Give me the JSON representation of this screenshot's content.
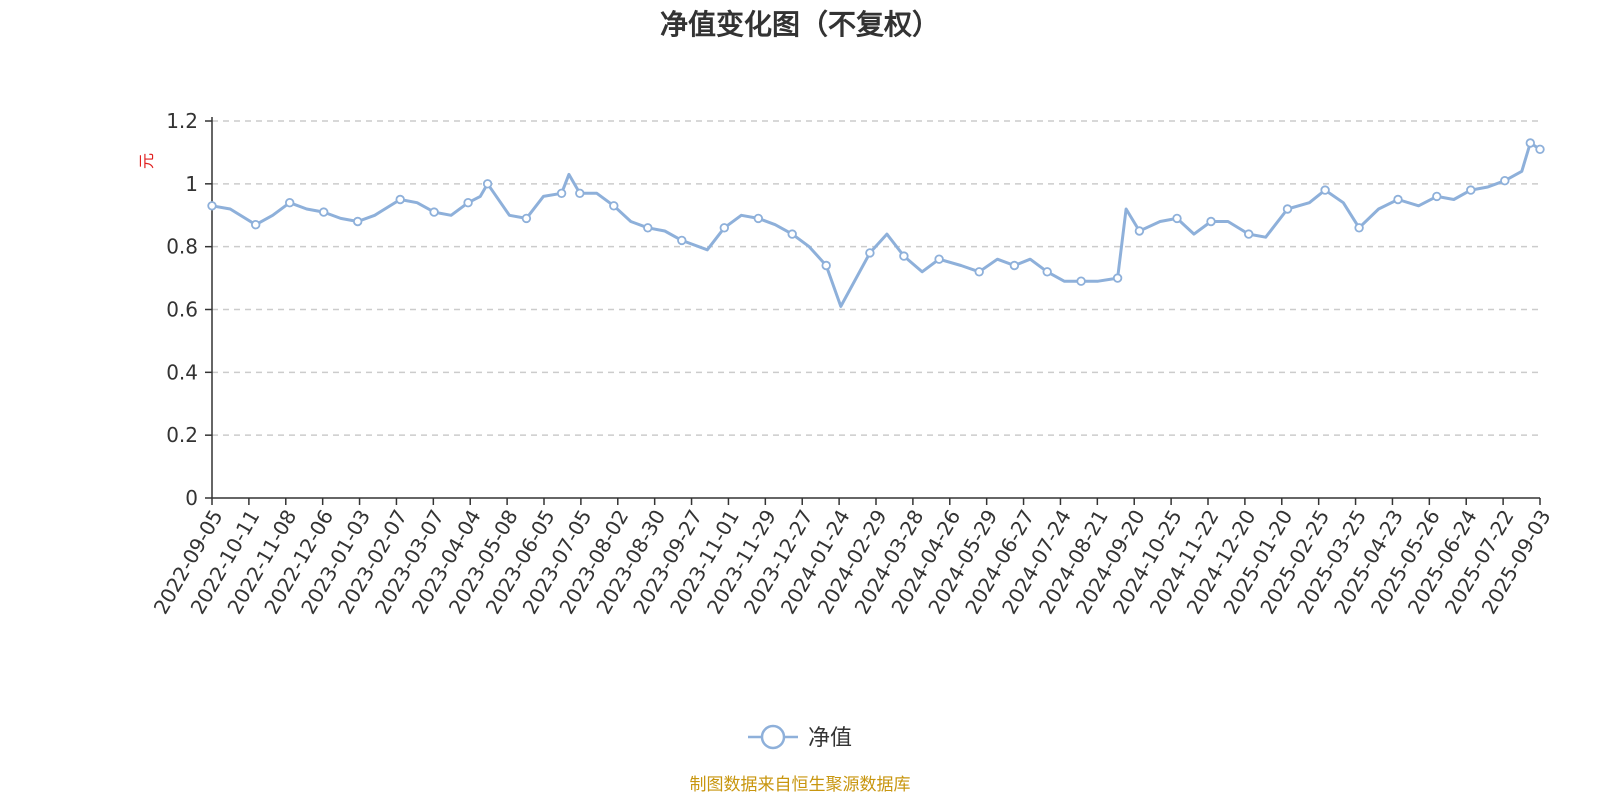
{
  "chart_data": {
    "type": "line",
    "title": "净值变化图（不复权）",
    "xlabel": "",
    "ylabel": "元",
    "ylim": [
      0,
      1.2
    ],
    "yticks": [
      "0",
      "0.2",
      "0.4",
      "0.6",
      "0.8",
      "1",
      "1.2"
    ],
    "grid": true,
    "legend_position": "bottom-center",
    "x_tick_labels": [
      "2022-09-05",
      "2022-10-11",
      "2022-11-08",
      "2022-12-06",
      "2023-01-03",
      "2023-02-07",
      "2023-03-07",
      "2023-04-04",
      "2023-05-08",
      "2023-06-05",
      "2023-07-05",
      "2023-08-02",
      "2023-08-30",
      "2023-09-27",
      "2023-11-01",
      "2023-11-29",
      "2023-12-27",
      "2024-01-24",
      "2024-02-29",
      "2024-03-28",
      "2024-04-26",
      "2024-05-29",
      "2024-06-27",
      "2024-07-24",
      "2024-08-21",
      "2024-09-20",
      "2024-10-25",
      "2024-11-22",
      "2024-12-20",
      "2025-01-20",
      "2025-02-25",
      "2025-03-25",
      "2025-04-23",
      "2025-05-26",
      "2025-06-24",
      "2025-07-22",
      "2025-09-03"
    ],
    "series": [
      {
        "name": "净值",
        "color": "#8eb0da",
        "x": [
          "2022-09-05",
          "2022-09-20",
          "2022-10-11",
          "2022-10-25",
          "2022-11-08",
          "2022-11-22",
          "2022-12-06",
          "2022-12-20",
          "2023-01-03",
          "2023-01-17",
          "2023-02-07",
          "2023-02-21",
          "2023-03-07",
          "2023-03-21",
          "2023-04-04",
          "2023-04-14",
          "2023-04-20",
          "2023-05-08",
          "2023-05-22",
          "2023-06-05",
          "2023-06-20",
          "2023-06-26",
          "2023-07-05",
          "2023-07-19",
          "2023-08-02",
          "2023-08-16",
          "2023-08-30",
          "2023-09-13",
          "2023-09-27",
          "2023-10-18",
          "2023-11-01",
          "2023-11-15",
          "2023-11-29",
          "2023-12-13",
          "2023-12-27",
          "2024-01-10",
          "2024-01-24",
          "2024-02-05",
          "2024-02-29",
          "2024-03-14",
          "2024-03-28",
          "2024-04-12",
          "2024-04-26",
          "2024-05-14",
          "2024-05-29",
          "2024-06-13",
          "2024-06-27",
          "2024-07-10",
          "2024-07-24",
          "2024-08-07",
          "2024-08-21",
          "2024-09-04",
          "2024-09-20",
          "2024-09-27",
          "2024-10-08",
          "2024-10-25",
          "2024-11-08",
          "2024-11-22",
          "2024-12-06",
          "2024-12-20",
          "2025-01-06",
          "2025-01-20",
          "2025-02-07",
          "2025-02-25",
          "2025-03-10",
          "2025-03-25",
          "2025-04-07",
          "2025-04-23",
          "2025-05-09",
          "2025-05-26",
          "2025-06-10",
          "2025-06-24",
          "2025-07-08",
          "2025-07-22",
          "2025-08-05",
          "2025-08-19",
          "2025-08-26",
          "2025-09-03"
        ],
        "values": [
          0.93,
          0.92,
          0.87,
          0.9,
          0.94,
          0.92,
          0.91,
          0.89,
          0.88,
          0.9,
          0.95,
          0.94,
          0.91,
          0.9,
          0.94,
          0.96,
          1.0,
          0.9,
          0.89,
          0.96,
          0.97,
          1.03,
          0.97,
          0.97,
          0.93,
          0.88,
          0.86,
          0.85,
          0.82,
          0.79,
          0.86,
          0.9,
          0.89,
          0.87,
          0.84,
          0.8,
          0.74,
          0.61,
          0.78,
          0.84,
          0.77,
          0.72,
          0.76,
          0.74,
          0.72,
          0.76,
          0.74,
          0.76,
          0.72,
          0.69,
          0.69,
          0.69,
          0.7,
          0.92,
          0.85,
          0.88,
          0.89,
          0.84,
          0.88,
          0.88,
          0.84,
          0.83,
          0.92,
          0.94,
          0.98,
          0.94,
          0.86,
          0.92,
          0.95,
          0.93,
          0.96,
          0.95,
          0.98,
          0.99,
          1.01,
          1.04,
          1.13,
          1.11
        ]
      }
    ]
  },
  "legend": {
    "label": "净值"
  },
  "source": {
    "text": "制图数据来自恒生聚源数据库",
    "color": "#c8960f"
  },
  "colors": {
    "axis": "#333333",
    "grid": "#cccccc",
    "line": "#8eb0da",
    "ylabel": "#e02020"
  }
}
